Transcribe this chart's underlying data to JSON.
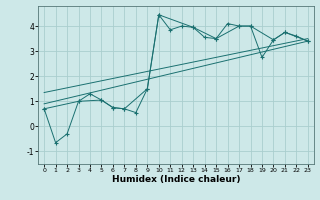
{
  "xlabel": "Humidex (Indice chaleur)",
  "background_color": "#cde8e8",
  "grid_color": "#aacece",
  "line_color": "#1a7070",
  "xlim": [
    -0.5,
    23.5
  ],
  "ylim": [
    -1.5,
    4.8
  ],
  "xticks": [
    0,
    1,
    2,
    3,
    4,
    5,
    6,
    7,
    8,
    9,
    10,
    11,
    12,
    13,
    14,
    15,
    16,
    17,
    18,
    19,
    20,
    21,
    22,
    23
  ],
  "yticks": [
    -1,
    0,
    1,
    2,
    3,
    4
  ],
  "series1_x": [
    0,
    1,
    2,
    3,
    4,
    5,
    6,
    7,
    8,
    9,
    10,
    11,
    12,
    13,
    14,
    15,
    16,
    17,
    18,
    19,
    20,
    21,
    22,
    23
  ],
  "series1_y": [
    0.7,
    -0.65,
    -0.3,
    1.0,
    1.3,
    1.05,
    0.75,
    0.7,
    0.55,
    1.5,
    4.45,
    3.85,
    4.0,
    3.95,
    3.55,
    3.5,
    4.1,
    4.0,
    4.0,
    2.75,
    3.45,
    3.75,
    3.6,
    3.4
  ],
  "series2_x": [
    0,
    3,
    5,
    6,
    7,
    9,
    10,
    13,
    15,
    17,
    18,
    20,
    21,
    23
  ],
  "series2_y": [
    0.7,
    1.0,
    1.05,
    0.75,
    0.7,
    1.5,
    4.45,
    3.95,
    3.5,
    4.0,
    4.0,
    3.45,
    3.75,
    3.4
  ],
  "trend1_x": [
    0,
    23
  ],
  "trend1_y": [
    0.9,
    3.4
  ],
  "trend2_x": [
    0,
    23
  ],
  "trend2_y": [
    1.35,
    3.5
  ]
}
